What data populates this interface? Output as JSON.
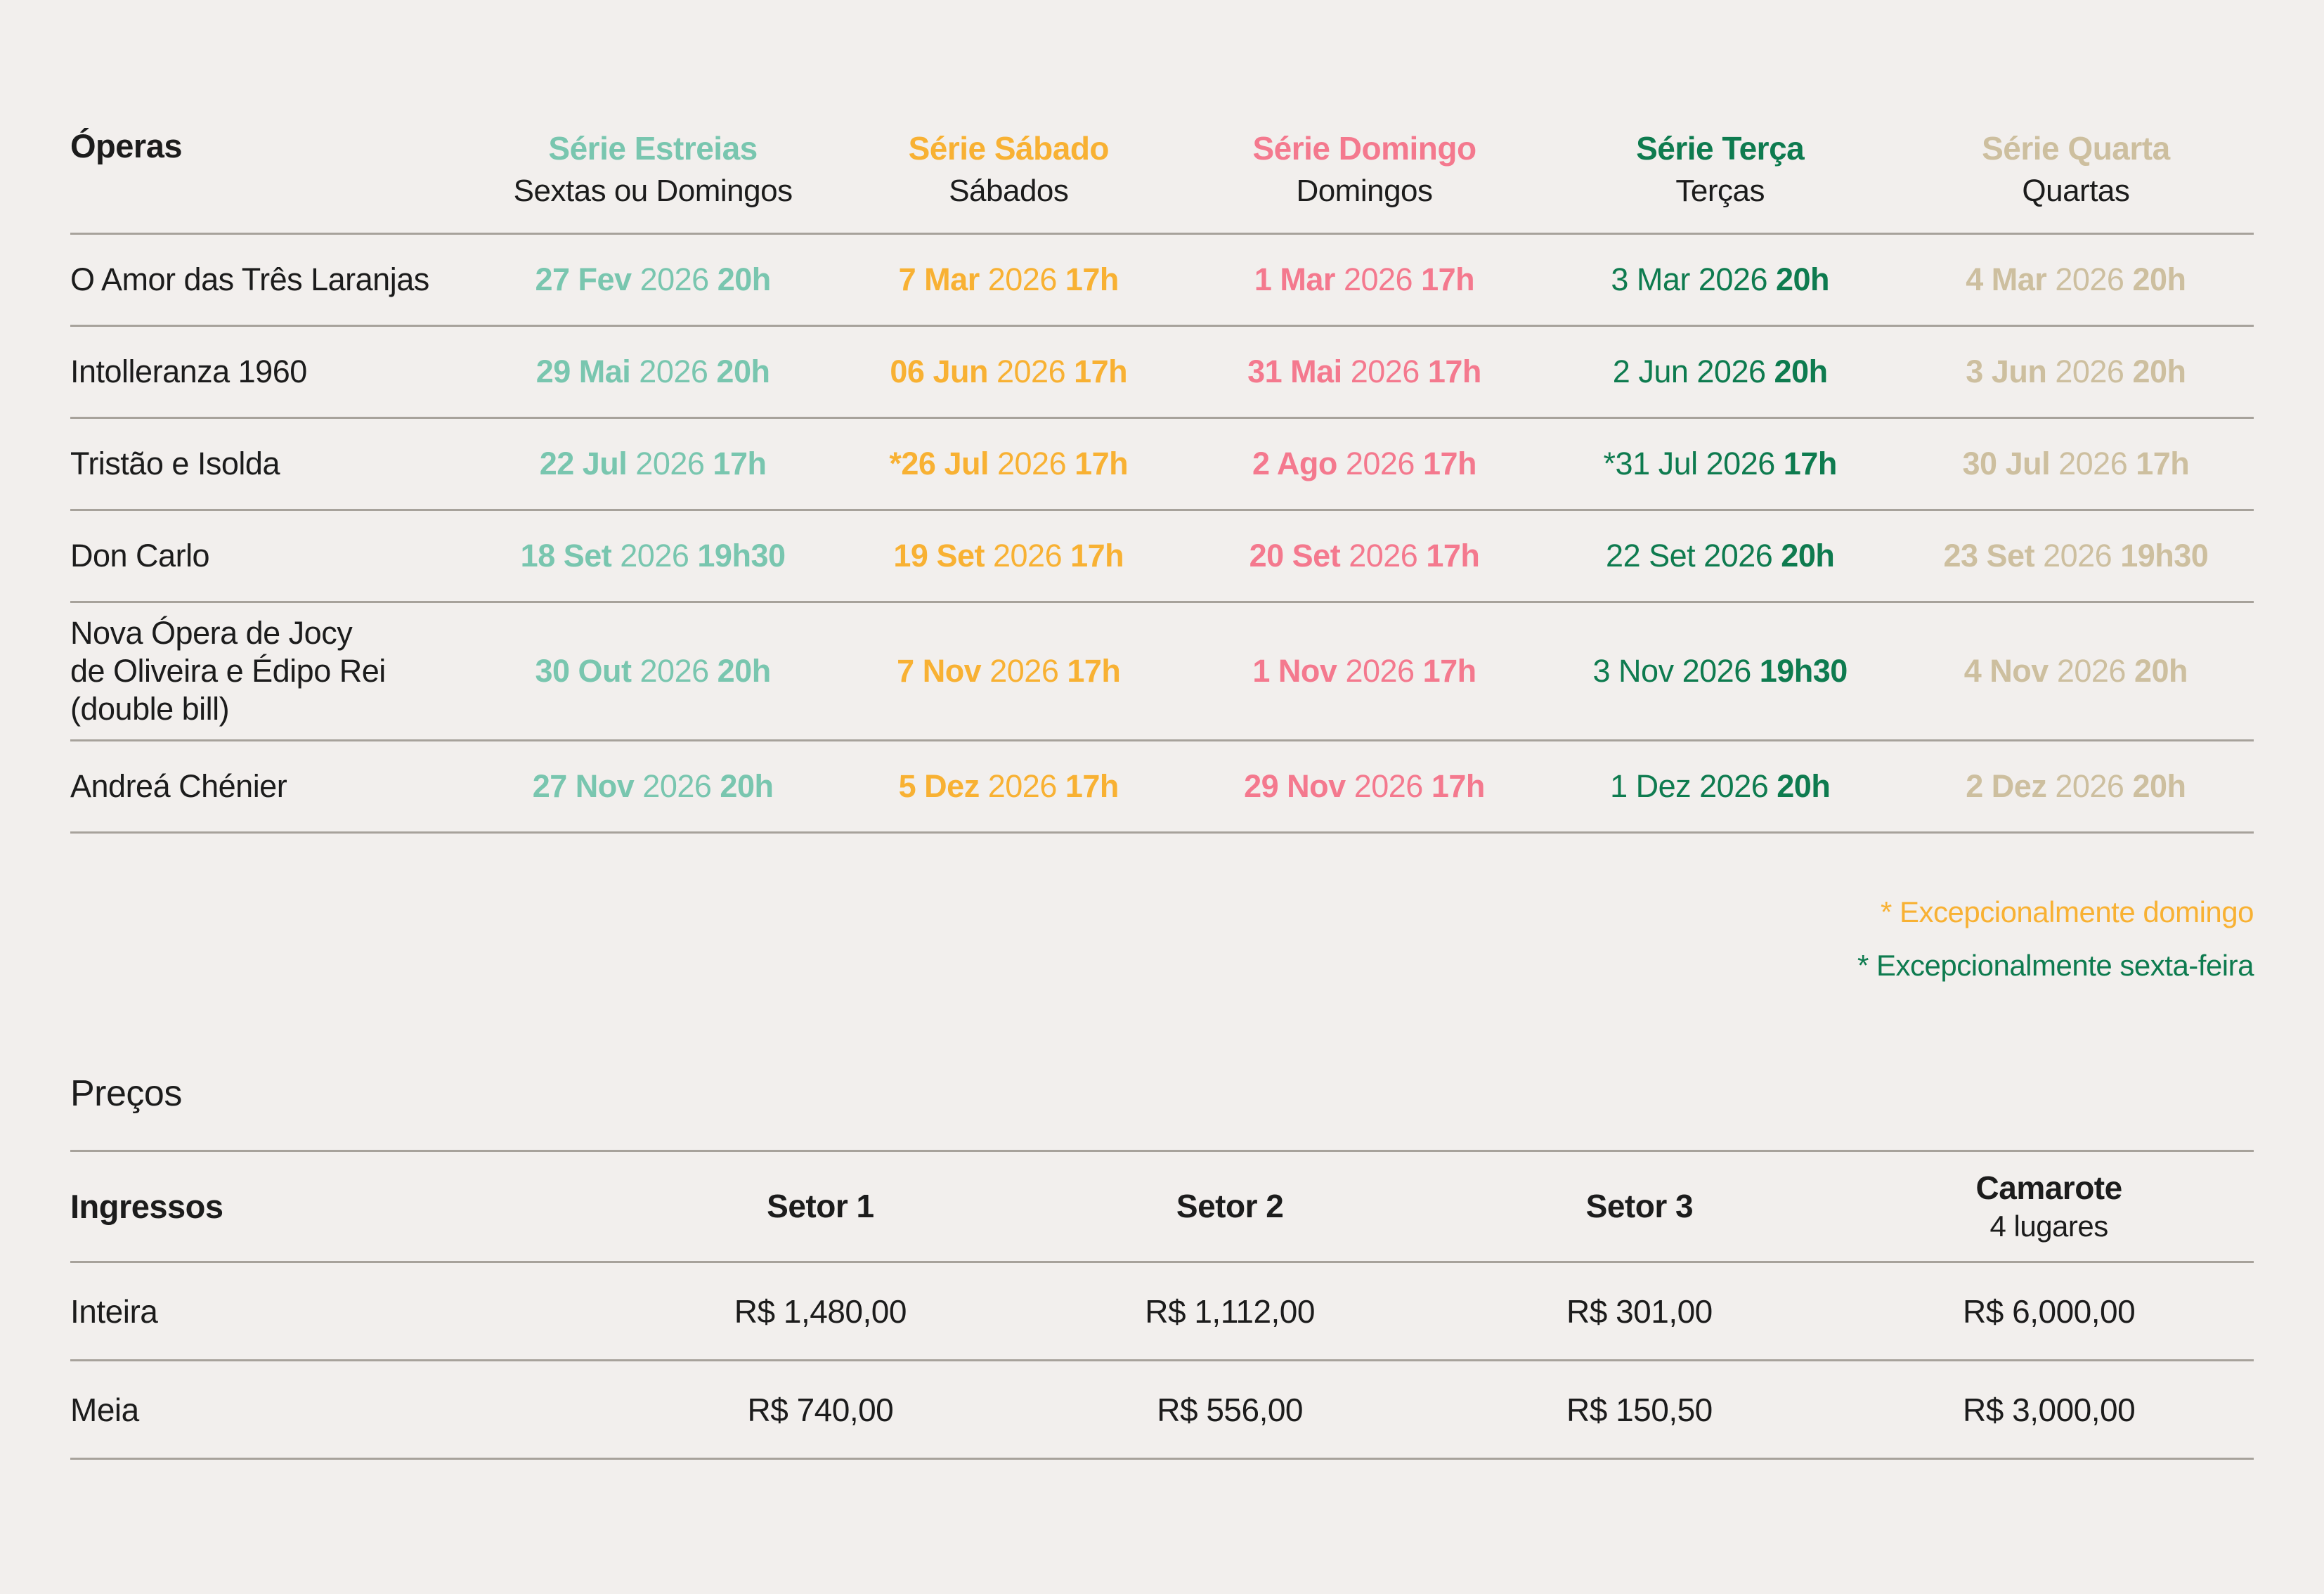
{
  "colors": {
    "background": "#f2efed",
    "rule": "#a7a29b",
    "text": "#1c1c1c"
  },
  "schedule": {
    "col_header_label": "Óperas",
    "columns": [
      {
        "title": "Série Estreias",
        "subtitle": "Sextas ou Domingos",
        "color": "#79c6af"
      },
      {
        "title": "Série Sábado",
        "subtitle": "Sábados",
        "color": "#f8b133"
      },
      {
        "title": "Série Domingo",
        "subtitle": "Domingos",
        "color": "#f4798e"
      },
      {
        "title": "Série Terça",
        "subtitle": "Terças",
        "color": "#0e7b4f"
      },
      {
        "title": "Série Quarta",
        "subtitle": "Quartas",
        "color": "#cdbf9f"
      }
    ],
    "rows": [
      {
        "name": "O Amor das Três Laranjas",
        "dates": [
          {
            "d": "27 Fev",
            "y": "2026",
            "t": "20h"
          },
          {
            "d": "7 Mar",
            "y": "2026",
            "t": "17h"
          },
          {
            "d": "1 Mar",
            "y": "2026",
            "t": "17h"
          },
          {
            "d": "3 Mar",
            "y": "2026",
            "t": "20h"
          },
          {
            "d": "4 Mar",
            "y": "2026",
            "t": "20h"
          }
        ]
      },
      {
        "name": "Intolleranza 1960",
        "dates": [
          {
            "d": "29 Mai",
            "y": "2026",
            "t": "20h"
          },
          {
            "d": "06 Jun",
            "y": "2026",
            "t": "17h"
          },
          {
            "d": "31 Mai",
            "y": "2026",
            "t": "17h"
          },
          {
            "d": "2 Jun",
            "y": "2026",
            "t": "20h"
          },
          {
            "d": "3 Jun",
            "y": "2026",
            "t": "20h"
          }
        ]
      },
      {
        "name": "Tristão e Isolda",
        "dates": [
          {
            "d": "22 Jul",
            "y": "2026",
            "t": "17h"
          },
          {
            "d": "*26 Jul",
            "y": "2026",
            "t": "17h"
          },
          {
            "d": "2 Ago",
            "y": "2026",
            "t": "17h"
          },
          {
            "d": "*31 Jul",
            "y": "2026",
            "t": "17h"
          },
          {
            "d": "30 Jul",
            "y": "2026",
            "t": "17h"
          }
        ]
      },
      {
        "name": "Don Carlo",
        "dates": [
          {
            "d": "18 Set",
            "y": "2026",
            "t": "19h30"
          },
          {
            "d": "19 Set",
            "y": "2026",
            "t": "17h"
          },
          {
            "d": "20 Set",
            "y": "2026",
            "t": "17h"
          },
          {
            "d": "22 Set",
            "y": "2026",
            "t": "20h"
          },
          {
            "d": "23 Set",
            "y": "2026",
            "t": "19h30"
          }
        ]
      },
      {
        "name": "Nova Ópera de Jocy\nde Oliveira e Édipo Rei\n(double bill)",
        "dates": [
          {
            "d": "30 Out",
            "y": "2026",
            "t": "20h"
          },
          {
            "d": "7 Nov",
            "y": "2026",
            "t": "17h"
          },
          {
            "d": "1 Nov",
            "y": "2026",
            "t": "17h"
          },
          {
            "d": "3 Nov",
            "y": "2026",
            "t": "19h30"
          },
          {
            "d": "4 Nov",
            "y": "2026",
            "t": "20h"
          }
        ]
      },
      {
        "name": "Andreá Chénier",
        "dates": [
          {
            "d": "27 Nov",
            "y": "2026",
            "t": "20h"
          },
          {
            "d": "5 Dez",
            "y": "2026",
            "t": "17h"
          },
          {
            "d": "29 Nov",
            "y": "2026",
            "t": "17h"
          },
          {
            "d": "1 Dez",
            "y": "2026",
            "t": "20h"
          },
          {
            "d": "2 Dez",
            "y": "2026",
            "t": "20h"
          }
        ]
      }
    ]
  },
  "footnotes": [
    {
      "text": "* Excepcionalmente domingo",
      "color": "#f8b133"
    },
    {
      "text": "* Excepcionalmente sexta-feira",
      "color": "#0e7b4f"
    }
  ],
  "prices": {
    "heading": "Preços",
    "header": {
      "label": "Ingressos",
      "cols": [
        "Setor 1",
        "Setor 2",
        "Setor 3"
      ],
      "camarote_title": "Camarote",
      "camarote_subtitle": "4 lugares"
    },
    "rows": [
      {
        "label": "Inteira",
        "values": [
          "R$ 1,480,00",
          "R$ 1,112,00",
          "R$ 301,00",
          "R$ 6,000,00"
        ]
      },
      {
        "label": "Meia",
        "values": [
          "R$ 740,00",
          "R$ 556,00",
          "R$ 150,50",
          "R$ 3,000,00"
        ]
      }
    ]
  }
}
